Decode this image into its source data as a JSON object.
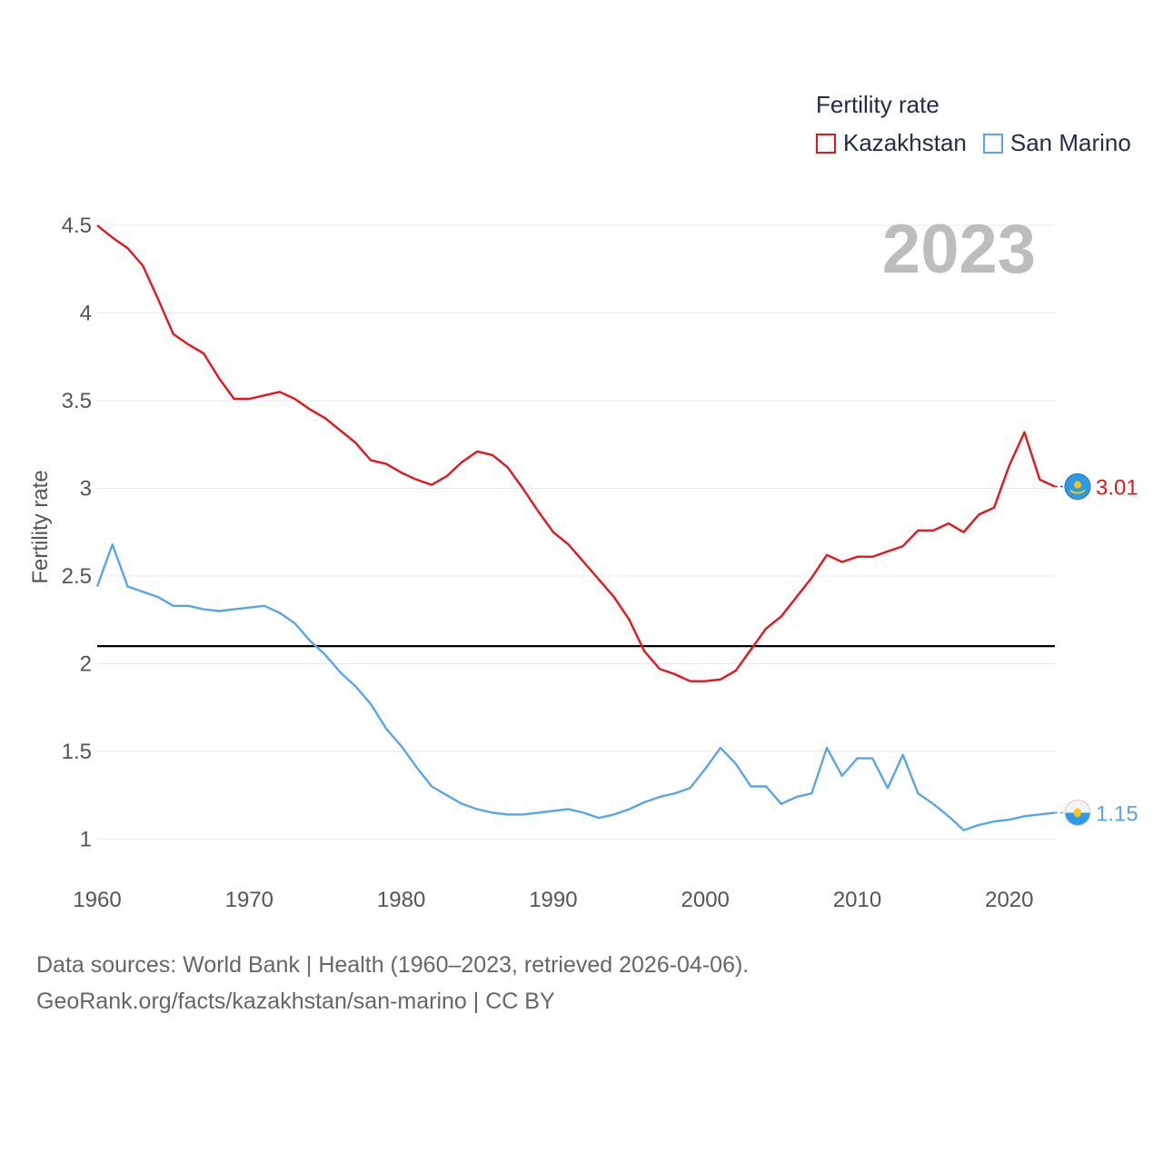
{
  "legend": {
    "title": "Fertility rate",
    "items": [
      {
        "label": "Kazakhstan",
        "color": "#e8141c"
      },
      {
        "label": "San Marino",
        "color": "#5aa5e6"
      }
    ]
  },
  "year_display": "2023",
  "end_labels": {
    "kazakhstan": "3.01",
    "san_marino": "1.15"
  },
  "source": {
    "line1": "Data sources: World Bank | Health (1960–2023, retrieved 2026-04-06).",
    "line2": "GeoRank.org/facts/kazakhstan/san-marino | CC BY"
  },
  "chart_data": {
    "type": "line",
    "title": "",
    "xlabel": "",
    "ylabel": "Fertility rate",
    "xlim": [
      1960,
      2023
    ],
    "ylim": [
      0.8,
      4.5
    ],
    "xticks": [
      1960,
      1970,
      1980,
      1990,
      2000,
      2010,
      2020
    ],
    "yticks": [
      1,
      1.5,
      2,
      2.5,
      3,
      3.5,
      4,
      4.5
    ],
    "ytick_labels": [
      "1",
      "1.5",
      "2",
      "2.5",
      "3",
      "3.5",
      "4",
      "4.5"
    ],
    "reference_line": 2.1,
    "x": [
      1960,
      1961,
      1962,
      1963,
      1964,
      1965,
      1966,
      1967,
      1968,
      1969,
      1970,
      1971,
      1972,
      1973,
      1974,
      1975,
      1976,
      1977,
      1978,
      1979,
      1980,
      1981,
      1982,
      1983,
      1984,
      1985,
      1986,
      1987,
      1988,
      1989,
      1990,
      1991,
      1992,
      1993,
      1994,
      1995,
      1996,
      1997,
      1998,
      1999,
      2000,
      2001,
      2002,
      2003,
      2004,
      2005,
      2006,
      2007,
      2008,
      2009,
      2010,
      2011,
      2012,
      2013,
      2014,
      2015,
      2016,
      2017,
      2018,
      2019,
      2020,
      2021,
      2022,
      2023
    ],
    "series": [
      {
        "name": "Kazakhstan",
        "color": "#e8141c",
        "values": [
          4.5,
          4.43,
          4.37,
          4.27,
          4.08,
          3.88,
          3.82,
          3.77,
          3.63,
          3.51,
          3.51,
          3.53,
          3.55,
          3.51,
          3.45,
          3.4,
          3.33,
          3.26,
          3.16,
          3.14,
          3.09,
          3.05,
          3.02,
          3.07,
          3.15,
          3.21,
          3.19,
          3.12,
          3.0,
          2.87,
          2.75,
          2.68,
          2.58,
          2.48,
          2.38,
          2.25,
          2.07,
          1.97,
          1.94,
          1.9,
          1.9,
          1.91,
          1.96,
          2.08,
          2.2,
          2.27,
          2.38,
          2.49,
          2.62,
          2.58,
          2.61,
          2.61,
          2.64,
          2.67,
          2.76,
          2.76,
          2.8,
          2.75,
          2.85,
          2.89,
          3.13,
          3.32,
          3.05,
          3.01
        ]
      },
      {
        "name": "San Marino",
        "color": "#5aa5e6",
        "values": [
          2.44,
          2.68,
          2.44,
          2.41,
          2.38,
          2.33,
          2.33,
          2.31,
          2.3,
          2.31,
          2.32,
          2.33,
          2.29,
          2.23,
          2.13,
          2.05,
          1.95,
          1.87,
          1.77,
          1.63,
          1.53,
          1.41,
          1.3,
          1.25,
          1.2,
          1.17,
          1.15,
          1.14,
          1.14,
          1.15,
          1.16,
          1.17,
          1.15,
          1.12,
          1.14,
          1.17,
          1.21,
          1.24,
          1.26,
          1.29,
          1.4,
          1.52,
          1.43,
          1.3,
          1.3,
          1.2,
          1.24,
          1.26,
          1.52,
          1.36,
          1.46,
          1.46,
          1.29,
          1.48,
          1.26,
          1.2,
          1.13,
          1.05,
          1.08,
          1.1,
          1.11,
          1.13,
          1.14,
          1.15
        ]
      }
    ]
  }
}
